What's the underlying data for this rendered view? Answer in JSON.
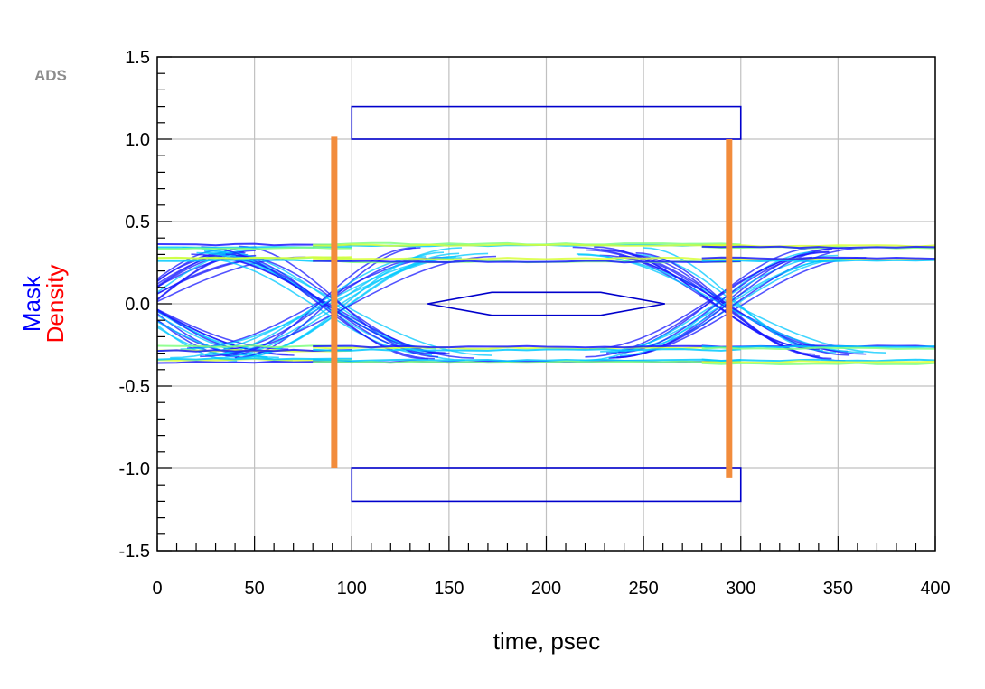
{
  "badge": "ADS",
  "chart_data": {
    "type": "line",
    "title": "",
    "xlabel": "time, psec",
    "ylabel_parts": [
      {
        "text": "Mask",
        "color": "#0000ff"
      },
      {
        "text": "Density",
        "color": "#ff0000"
      }
    ],
    "xlim": [
      0,
      400
    ],
    "ylim": [
      -1.5,
      1.5
    ],
    "x_ticks": [
      0,
      50,
      100,
      150,
      200,
      250,
      300,
      350,
      400
    ],
    "x_tick_labels": [
      "0",
      "50",
      "100",
      "150",
      "200",
      "250",
      "300",
      "350",
      "400"
    ],
    "y_ticks": [
      1.5,
      1.0,
      0.5,
      0.0,
      -0.5,
      -1.0,
      -1.5
    ],
    "y_tick_labels": [
      "1.5",
      "1.0",
      "0.5",
      "0.0",
      "-0.5",
      "-1.0",
      "-1.5"
    ],
    "grid": true,
    "eye": {
      "ui_period": 200,
      "crossings": [
        90,
        290
      ],
      "levels": {
        "high_outer": 0.35,
        "high_inner": 0.27,
        "low_inner": -0.27,
        "low_outer": -0.35
      },
      "colors": [
        "#1a1aff",
        "#00c8ff",
        "#7fff7f",
        "#d8ff3a"
      ]
    },
    "mask": {
      "color": "#0000cc",
      "top_box": {
        "x": [
          100,
          300
        ],
        "y": [
          1.0,
          1.2
        ]
      },
      "bottom_box": {
        "x": [
          100,
          300
        ],
        "y": [
          -1.2,
          -1.0
        ]
      },
      "center_hexagon": [
        [
          139,
          0.0
        ],
        [
          172,
          0.07
        ],
        [
          228,
          0.07
        ],
        [
          261,
          0.0
        ],
        [
          228,
          -0.07
        ],
        [
          172,
          -0.07
        ]
      ]
    },
    "markers": {
      "color": "#f28c3c",
      "lines": [
        {
          "x": 91,
          "y": [
            -1.0,
            1.02
          ]
        },
        {
          "x": 294,
          "y": [
            -1.06,
            1.0
          ]
        }
      ]
    }
  }
}
